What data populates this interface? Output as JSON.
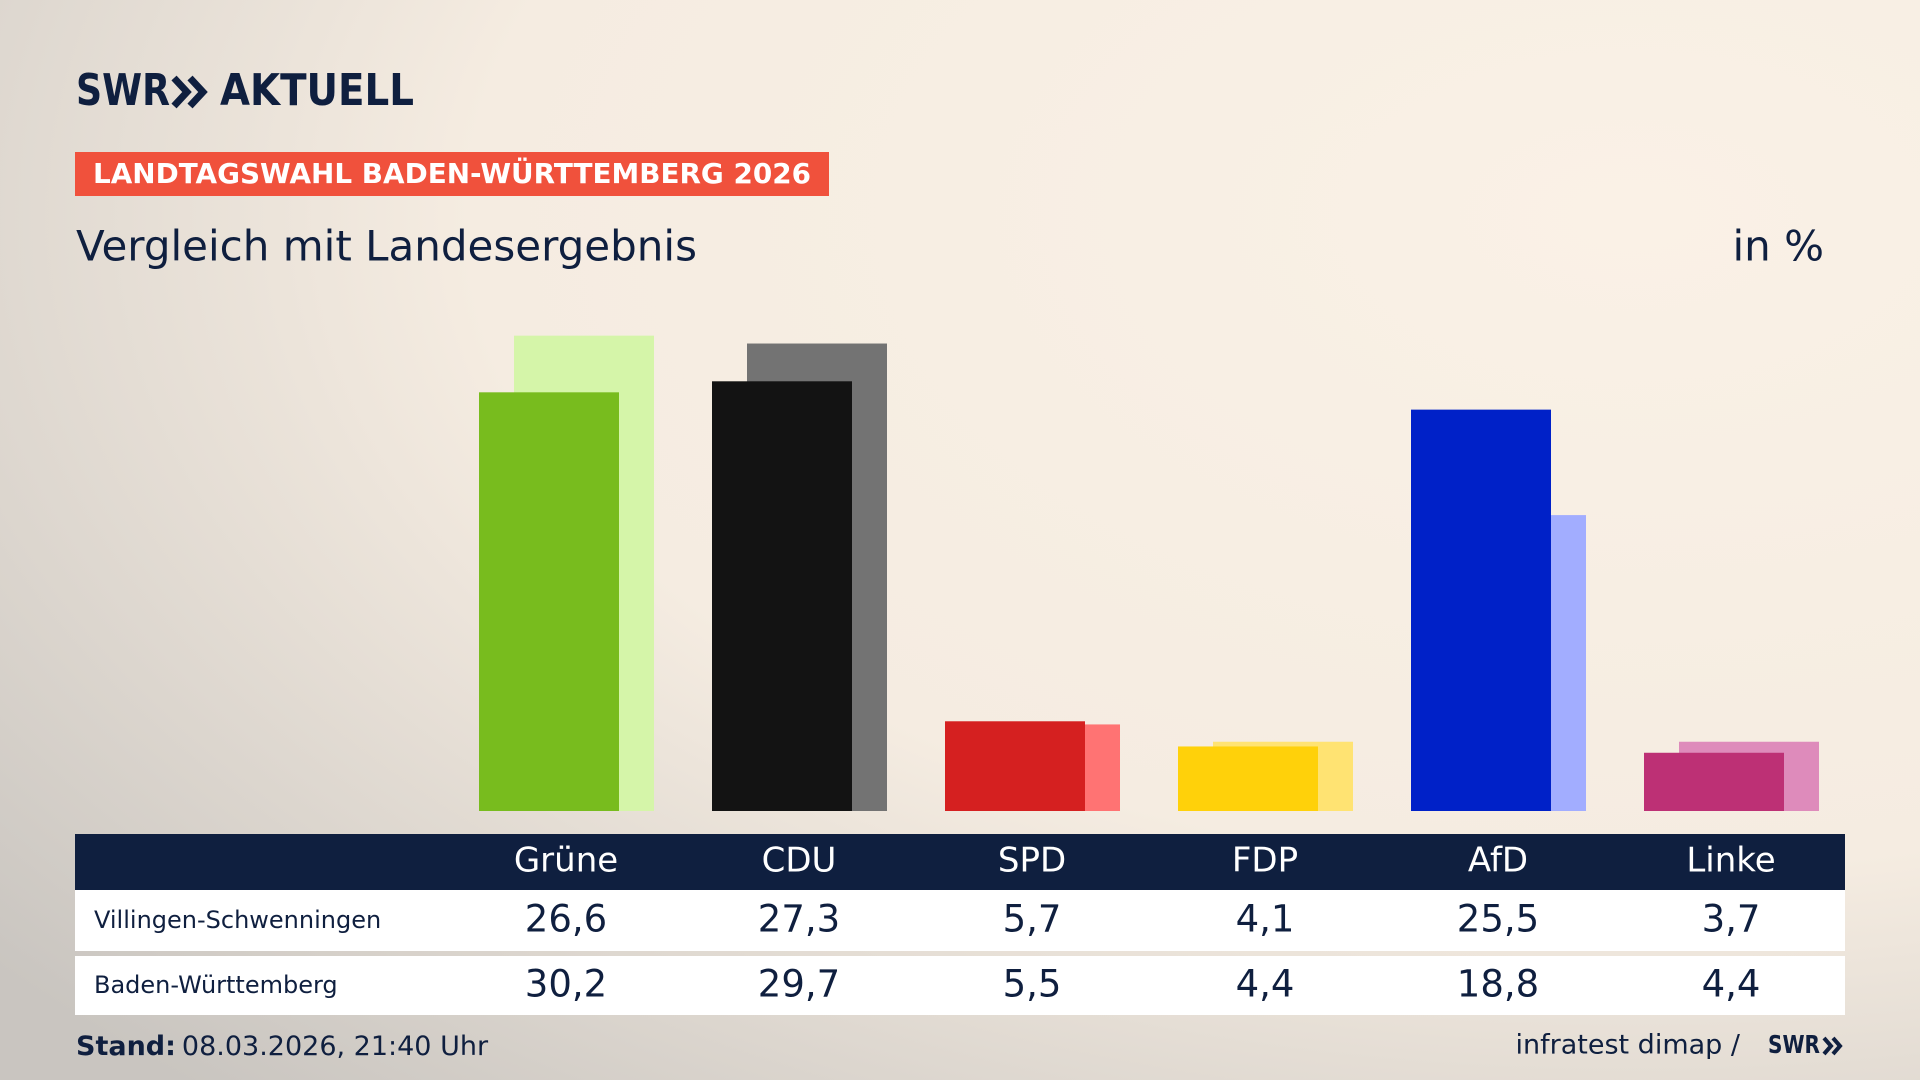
{
  "header": {
    "brand": "SWR",
    "brand_suffix": "AKTUELL",
    "kicker": "LANDTAGSWAHL BADEN-WÜRTTEMBERG 2026"
  },
  "chart_data": {
    "type": "bar",
    "title": "Vergleich mit Landesergebnis",
    "unit_label": "in %",
    "categories": [
      "Grüne",
      "CDU",
      "SPD",
      "FDP",
      "AfD",
      "Linke"
    ],
    "series": [
      {
        "name": "Villingen-Schwenningen",
        "colors": [
          "#78bc1e",
          "#131313",
          "#d52020",
          "#ffd10a",
          "#0021c8",
          "#bd3075"
        ],
        "values": [
          26.6,
          27.3,
          5.7,
          4.1,
          25.5,
          3.7
        ],
        "value_labels": [
          "26,6",
          "27,3",
          "5,7",
          "4,1",
          "25,5",
          "3,7"
        ]
      },
      {
        "name": "Baden-Württemberg",
        "colors": [
          "#d5f5a9",
          "#737373",
          "#ff7373",
          "#ffe372",
          "#a2adff",
          "#de8bbb"
        ],
        "values": [
          30.2,
          29.7,
          5.5,
          4.4,
          18.8,
          4.4
        ],
        "value_labels": [
          "30,2",
          "29,7",
          "5,5",
          "4,4",
          "18,8",
          "4,4"
        ]
      }
    ]
  },
  "footer": {
    "stand_label": "Stand:",
    "stand_value": "08.03.2026, 21:40 Uhr",
    "source": "infratest dimap /",
    "source_brand": "SWR"
  }
}
